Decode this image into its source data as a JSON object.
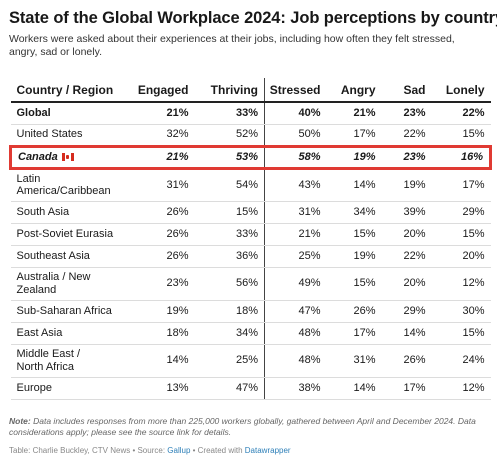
{
  "title": "State of the Global Workplace 2024: Job perceptions by country",
  "subtitle": "Workers were asked about their experiences at their jobs, including how often they felt stressed, angry, sad or lonely.",
  "chart_data": {
    "type": "table",
    "columns": [
      "Country / Region",
      "Engaged",
      "Thriving",
      "Stressed",
      "Angry",
      "Sad",
      "Lonely"
    ],
    "rows": [
      {
        "region": "Global",
        "values": [
          "21%",
          "33%",
          "40%",
          "21%",
          "23%",
          "22%"
        ],
        "style": "bold"
      },
      {
        "region": "United States",
        "values": [
          "32%",
          "52%",
          "50%",
          "17%",
          "22%",
          "15%"
        ],
        "style": "normal"
      },
      {
        "region": "Canada",
        "values": [
          "21%",
          "53%",
          "58%",
          "19%",
          "23%",
          "16%"
        ],
        "style": "highlight",
        "flag": "canada-flag-icon"
      },
      {
        "region": "Latin America/Caribbean",
        "values": [
          "31%",
          "54%",
          "43%",
          "14%",
          "19%",
          "17%"
        ],
        "style": "normal"
      },
      {
        "region": "South Asia",
        "values": [
          "26%",
          "15%",
          "31%",
          "34%",
          "39%",
          "29%"
        ],
        "style": "normal"
      },
      {
        "region": "Post-Soviet Eurasia",
        "values": [
          "26%",
          "33%",
          "21%",
          "15%",
          "20%",
          "15%"
        ],
        "style": "normal"
      },
      {
        "region": "Southeast Asia",
        "values": [
          "26%",
          "36%",
          "25%",
          "19%",
          "22%",
          "20%"
        ],
        "style": "normal"
      },
      {
        "region": "Australia / New Zealand",
        "values": [
          "23%",
          "56%",
          "49%",
          "15%",
          "20%",
          "12%"
        ],
        "style": "normal"
      },
      {
        "region": "Sub-Saharan Africa",
        "values": [
          "19%",
          "18%",
          "47%",
          "26%",
          "29%",
          "30%"
        ],
        "style": "normal"
      },
      {
        "region": "East Asia",
        "values": [
          "18%",
          "34%",
          "48%",
          "17%",
          "14%",
          "15%"
        ],
        "style": "normal"
      },
      {
        "region": "Middle East / North Africa",
        "values": [
          "14%",
          "25%",
          "48%",
          "31%",
          "26%",
          "24%"
        ],
        "style": "normal"
      },
      {
        "region": "Europe",
        "values": [
          "13%",
          "47%",
          "38%",
          "14%",
          "17%",
          "12%"
        ],
        "style": "normal"
      }
    ]
  },
  "note": {
    "label": "Note:",
    "text": "Data includes responses from more than 225,000 workers globally, gathered between April and December 2024. Data considerations apply; please see the source link for details."
  },
  "source": {
    "prefix": "Table: Charlie Buckley, CTV News • Source: ",
    "source_link": "Gallup",
    "middle": " • Created with ",
    "tool_link": "Datawrapper"
  },
  "colors": {
    "highlight_border": "#e03a33",
    "link": "#2d7fb8"
  }
}
